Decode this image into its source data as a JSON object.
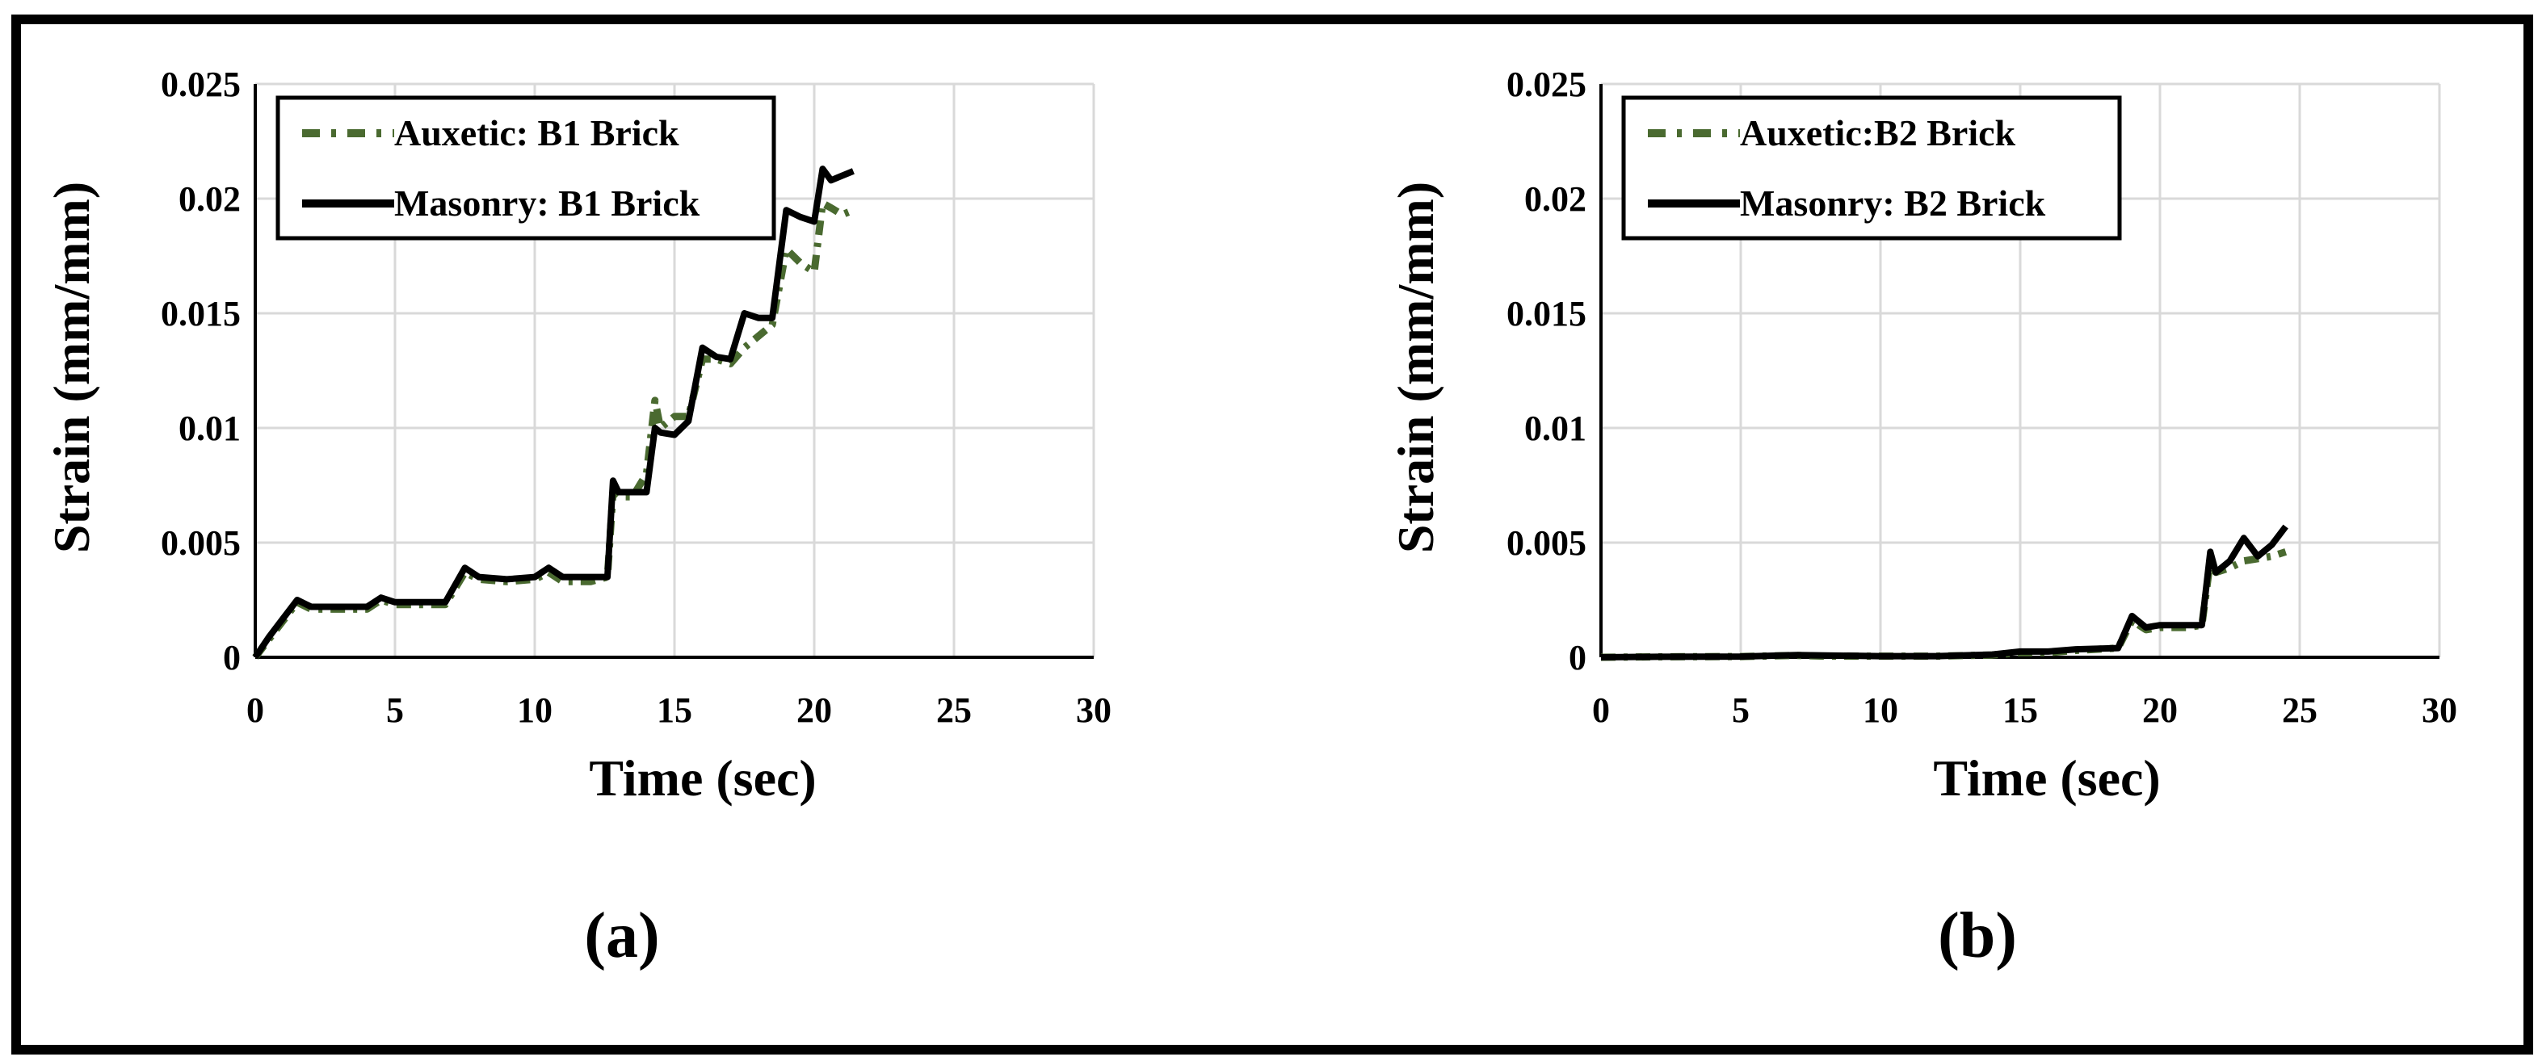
{
  "colors": {
    "auxetic": "#4a6a30",
    "masonry": "#000000",
    "grid": "#d9d9d9",
    "frame": "#000000"
  },
  "chart_data": [
    {
      "type": "line",
      "panel_label": "(a)",
      "xlabel": "Time (sec)",
      "ylabel": "Strain (mm/mm)",
      "xlim": [
        0,
        30
      ],
      "ylim": [
        0,
        0.025
      ],
      "xticks": [
        "0",
        "5",
        "10",
        "15",
        "20",
        "25",
        "30"
      ],
      "yticks": [
        "0",
        "0.005",
        "0.01",
        "0.015",
        "0.02",
        "0.025"
      ],
      "grid": true,
      "legend_position": "top-left",
      "series": [
        {
          "name": "Auxetic: B1 Brick",
          "style": "dash-dot",
          "x": [
            0,
            0.5,
            1,
            1.5,
            2,
            3,
            4,
            4.5,
            5,
            6,
            6.8,
            7.5,
            8,
            9,
            10,
            10.5,
            11,
            12,
            12.6,
            12.8,
            13,
            13.5,
            14,
            14.3,
            14.5,
            15,
            15.5,
            16,
            16.5,
            17,
            17.5,
            18,
            18.5,
            19,
            19.5,
            20,
            20.3,
            20.6,
            21,
            21.4
          ],
          "y": [
            0,
            0.0008,
            0.0016,
            0.0024,
            0.0021,
            0.0021,
            0.0021,
            0.0025,
            0.0023,
            0.0023,
            0.0023,
            0.0037,
            0.0034,
            0.0033,
            0.0034,
            0.0037,
            0.0033,
            0.0033,
            0.0035,
            0.0072,
            0.007,
            0.007,
            0.008,
            0.0112,
            0.01,
            0.0105,
            0.0105,
            0.013,
            0.013,
            0.0128,
            0.0135,
            0.014,
            0.0145,
            0.0178,
            0.0172,
            0.0168,
            0.0198,
            0.0196,
            0.0193,
            0.0195
          ]
        },
        {
          "name": "Masonry: B1 Brick",
          "style": "solid",
          "x": [
            0,
            0.5,
            1,
            1.5,
            2,
            3,
            4,
            4.5,
            5,
            6,
            6.8,
            7.5,
            8,
            9,
            10,
            10.5,
            11,
            12,
            12.6,
            12.8,
            13,
            13.5,
            14,
            14.3,
            14.5,
            15,
            15.5,
            16,
            16.5,
            17,
            17.5,
            18,
            18.5,
            19,
            19.5,
            20,
            20.3,
            20.6,
            21,
            21.4
          ],
          "y": [
            0,
            0.0009,
            0.0017,
            0.0025,
            0.0022,
            0.0022,
            0.0022,
            0.0026,
            0.0024,
            0.0024,
            0.0024,
            0.0039,
            0.0035,
            0.0034,
            0.0035,
            0.0039,
            0.0035,
            0.0035,
            0.0035,
            0.0077,
            0.0072,
            0.0072,
            0.0072,
            0.01,
            0.0098,
            0.0097,
            0.0103,
            0.0135,
            0.0131,
            0.013,
            0.015,
            0.0148,
            0.0148,
            0.0195,
            0.0192,
            0.019,
            0.0213,
            0.0208,
            0.021,
            0.0212
          ]
        }
      ]
    },
    {
      "type": "line",
      "panel_label": "(b)",
      "xlabel": "Time (sec)",
      "ylabel": "Strain (mm/mm)",
      "xlim": [
        0,
        30
      ],
      "ylim": [
        0,
        0.025
      ],
      "xticks": [
        "0",
        "5",
        "10",
        "15",
        "20",
        "25",
        "30"
      ],
      "yticks": [
        "0",
        "0.005",
        "0.01",
        "0.015",
        "0.02",
        "0.025"
      ],
      "grid": true,
      "legend_position": "top-left",
      "series": [
        {
          "name": "Auxetic:B2 Brick",
          "style": "dash-dot",
          "x": [
            0,
            2,
            5,
            7,
            8,
            10,
            12,
            14,
            15,
            16,
            17,
            18.5,
            19,
            19.5,
            20,
            21,
            21.5,
            21.8,
            22,
            22.5,
            23,
            23.5,
            24,
            24.5
          ],
          "y": [
            0,
            2e-05,
            3e-05,
            8e-05,
            5e-05,
            5e-05,
            5e-05,
            0.0001,
            0.0002,
            0.0002,
            0.0003,
            0.0004,
            0.0016,
            0.0012,
            0.0013,
            0.0013,
            0.0014,
            0.0042,
            0.0037,
            0.0039,
            0.0042,
            0.0043,
            0.0044,
            0.0046
          ]
        },
        {
          "name": "Masonry: B2 Brick",
          "style": "solid",
          "x": [
            0,
            2,
            5,
            7,
            8,
            10,
            12,
            14,
            15,
            16,
            17,
            18.5,
            19,
            19.5,
            20,
            21,
            21.5,
            21.8,
            22,
            22.5,
            23,
            23.5,
            24,
            24.5
          ],
          "y": [
            0,
            2e-05,
            3e-05,
            0.0001,
            8e-05,
            5e-05,
            5e-05,
            0.00012,
            0.00025,
            0.00025,
            0.00035,
            0.0004,
            0.0018,
            0.0013,
            0.0014,
            0.0014,
            0.0014,
            0.0046,
            0.0037,
            0.0042,
            0.0052,
            0.0044,
            0.0049,
            0.0057
          ]
        }
      ]
    }
  ]
}
